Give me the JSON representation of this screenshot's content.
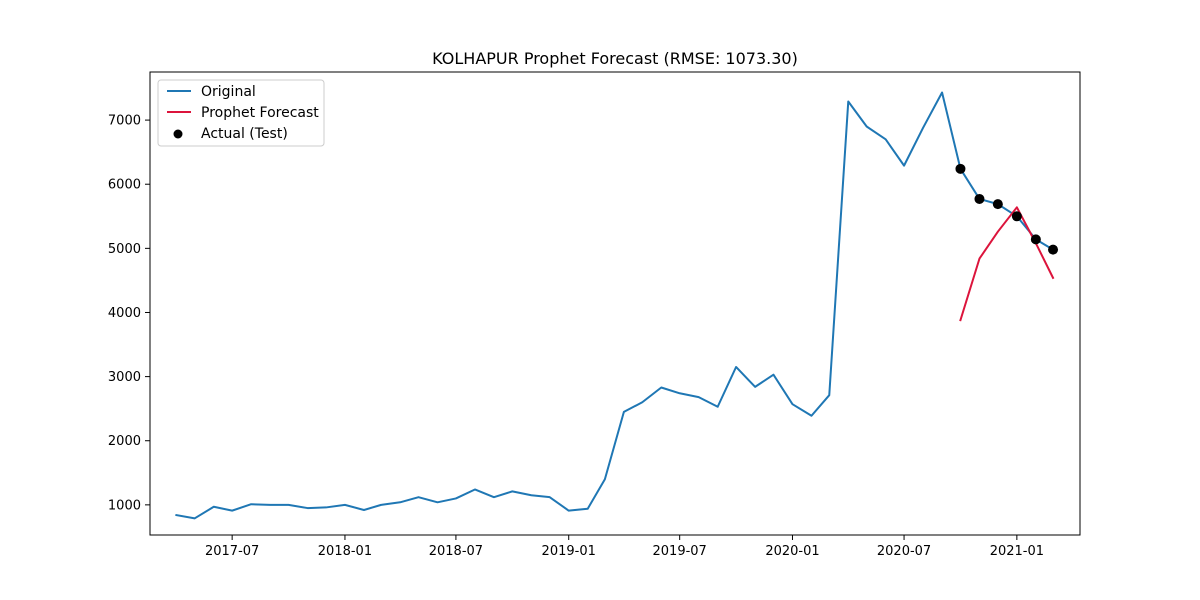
{
  "chart_data": {
    "type": "line",
    "title": "KOLHAPUR Prophet Forecast (RMSE: 1073.30)",
    "xlabel": "",
    "ylabel": "",
    "x_tick_labels": [
      "2017-07",
      "2018-01",
      "2018-07",
      "2019-01",
      "2019-07",
      "2020-01",
      "2020-07",
      "2021-01"
    ],
    "y_ticks": [
      1000,
      2000,
      3000,
      4000,
      5000,
      6000,
      7000
    ],
    "xlim": [
      "2017-02-17",
      "2021-04-14"
    ],
    "ylim": [
      530,
      7750
    ],
    "grid": false,
    "legend_position": "top-left",
    "series": [
      {
        "name": "Original",
        "color": "#1f77b4",
        "style": "line",
        "x": [
          "2017-04-01",
          "2017-05-01",
          "2017-06-01",
          "2017-07-01",
          "2017-08-01",
          "2017-09-01",
          "2017-10-01",
          "2017-11-01",
          "2017-12-01",
          "2018-01-01",
          "2018-02-01",
          "2018-03-01",
          "2018-04-01",
          "2018-05-01",
          "2018-06-01",
          "2018-07-01",
          "2018-08-01",
          "2018-09-01",
          "2018-10-01",
          "2018-11-01",
          "2018-12-01",
          "2019-01-01",
          "2019-02-01",
          "2019-03-01",
          "2019-04-01",
          "2019-05-01",
          "2019-06-01",
          "2019-07-01",
          "2019-08-01",
          "2019-09-01",
          "2019-10-01",
          "2019-11-01",
          "2019-12-01",
          "2020-01-01",
          "2020-02-01",
          "2020-03-01",
          "2020-04-01",
          "2020-05-01",
          "2020-06-01",
          "2020-07-01",
          "2020-08-01",
          "2020-09-01",
          "2020-10-01",
          "2020-11-01",
          "2020-12-01",
          "2021-01-01",
          "2021-02-01",
          "2021-03-01"
        ],
        "y": [
          840,
          790,
          970,
          910,
          1010,
          1000,
          1000,
          950,
          960,
          1000,
          920,
          1000,
          1040,
          1120,
          1040,
          1100,
          1240,
          1120,
          1210,
          1150,
          1120,
          910,
          940,
          1400,
          2450,
          2600,
          2830,
          2740,
          2680,
          2530,
          3150,
          2840,
          3030,
          2570,
          2390,
          2710,
          7290,
          6900,
          6700,
          6290,
          6880,
          7430,
          6240,
          5770,
          5690,
          5500,
          5140,
          4980
        ]
      },
      {
        "name": "Prophet Forecast",
        "color": "#dc143c",
        "style": "line",
        "x": [
          "2020-10-01",
          "2020-11-01",
          "2020-12-01",
          "2021-01-01",
          "2021-02-01",
          "2021-03-01"
        ],
        "y": [
          3880,
          4840,
          5260,
          5640,
          5080,
          4540
        ]
      },
      {
        "name": "Actual (Test)",
        "color": "#000000",
        "style": "scatter",
        "x": [
          "2020-10-01",
          "2020-11-01",
          "2020-12-01",
          "2021-01-01",
          "2021-02-01",
          "2021-03-01"
        ],
        "y": [
          6240,
          5770,
          5690,
          5500,
          5140,
          4980
        ]
      }
    ]
  }
}
